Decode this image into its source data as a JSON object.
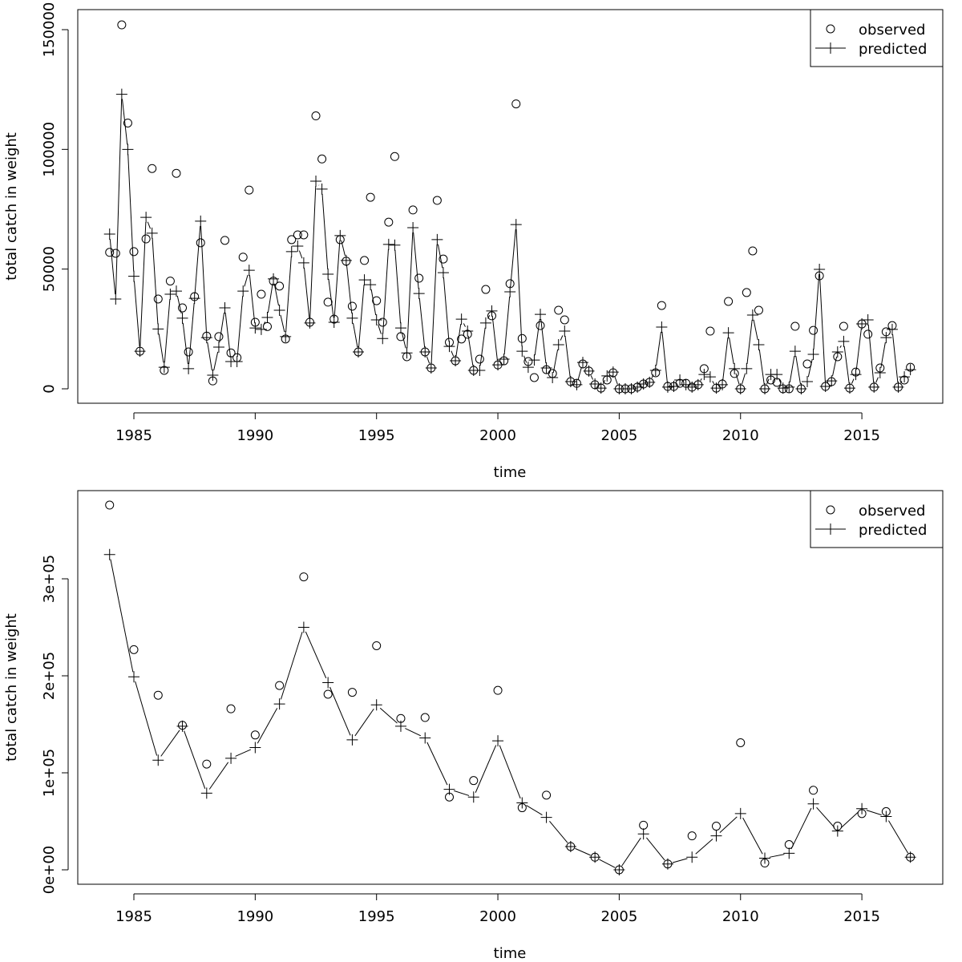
{
  "chart_data": [
    {
      "type": "line",
      "title": "",
      "xlabel": "time",
      "ylabel": "total catch in weight",
      "value_scale": 1000,
      "x_start": 1984.0,
      "x_step": 0.25,
      "xlim": [
        1983.5,
        2018.0
      ],
      "ylim": [
        0,
        160000
      ],
      "x_ticks": [
        1985,
        1990,
        1995,
        2000,
        2005,
        2010,
        2015
      ],
      "x_tick_labels": [
        "1985",
        "1990",
        "1995",
        "2000",
        "2005",
        "2010",
        "2015"
      ],
      "y_ticks": [
        0,
        50000,
        100000,
        150000
      ],
      "y_tick_labels": [
        "0",
        "50000",
        "100000",
        "150000"
      ],
      "legend": {
        "placement": "top-right",
        "entries": [
          "observed",
          "predicted"
        ]
      },
      "series": [
        {
          "name": "observed",
          "style": "points-circle",
          "values": [
            57,
            56.6,
            152,
            111,
            57.3,
            15.7,
            62.6,
            92,
            37.5,
            7.7,
            45,
            90,
            33.8,
            15.4,
            38.5,
            61,
            22,
            3.3,
            21.8,
            62,
            15,
            13,
            55,
            83,
            27.8,
            39.5,
            26,
            45,
            42.9,
            20.8,
            62.3,
            64.3,
            64.3,
            27.8,
            114,
            96,
            36.2,
            29.1,
            62.3,
            53.3,
            34.5,
            15.4,
            53.6,
            80,
            36.8,
            27.8,
            69.6,
            97,
            21.8,
            13.4,
            74.7,
            46.2,
            15.4,
            8.7,
            78.7,
            54.2,
            19.4,
            11.7,
            20.8,
            22.8,
            7.7,
            12.4,
            41.5,
            30.5,
            10,
            11.7,
            43.9,
            119,
            21,
            11.4,
            4.7,
            26.4,
            8,
            6.4,
            32.8,
            28.8,
            3,
            2.3,
            10.4,
            7.4,
            1.7,
            0.3,
            3.7,
            6.7,
            0,
            0,
            0,
            0.7,
            2,
            2.7,
            6.7,
            34.8,
            1,
            1,
            2.3,
            2.3,
            0.7,
            1.7,
            8.4,
            24.1,
            0.3,
            2,
            36.5,
            6.4,
            0,
            40.2,
            57.6,
            32.8,
            0,
            3.7,
            2.7,
            0,
            0,
            26.1,
            0,
            10.4,
            24.4,
            47.2,
            1,
            3,
            13.4,
            26.1,
            0.3,
            7,
            27.1,
            22.8,
            0.7,
            8.7,
            23.8,
            26.4,
            0.7,
            3.7,
            9
          ]
        },
        {
          "name": "predicted",
          "style": "line-plus",
          "values": [
            64.6,
            37.5,
            123,
            100,
            47,
            15.7,
            71.6,
            65,
            25,
            9,
            39.5,
            40.8,
            29.5,
            8.4,
            37.8,
            70,
            21.4,
            5.7,
            17.4,
            33.8,
            11.4,
            11.4,
            40.8,
            49.5,
            25.4,
            24.8,
            29.8,
            45.9,
            32.8,
            21.8,
            57.3,
            59.6,
            52.6,
            27.5,
            86.7,
            83.4,
            47.9,
            27.8,
            64,
            53.6,
            29.5,
            15.4,
            45.5,
            43.5,
            28.8,
            21,
            60.3,
            60,
            25.4,
            15,
            67.3,
            39.8,
            15.4,
            8.7,
            62.3,
            48.5,
            17.7,
            11.7,
            29.1,
            24.1,
            7.7,
            7.7,
            27.5,
            32.5,
            10,
            12.4,
            40.5,
            68.6,
            15.7,
            9,
            12,
            31.1,
            8.7,
            4.7,
            18.4,
            24.1,
            3,
            1.7,
            11,
            7.4,
            2,
            0.3,
            5.4,
            7,
            0,
            0,
            0,
            0.7,
            2,
            2.7,
            7.7,
            25.8,
            0.7,
            1,
            3.7,
            1.7,
            0.7,
            1.7,
            6,
            5,
            0.3,
            1.7,
            23.4,
            8.4,
            0,
            8.4,
            30.8,
            18.4,
            0,
            6,
            6,
            0.3,
            0.7,
            15.7,
            0,
            3,
            14.4,
            49.9,
            1,
            3.3,
            15.4,
            19.8,
            0.3,
            6,
            27.1,
            28.8,
            0.7,
            6.7,
            21.4,
            24.8,
            0.7,
            5,
            8
          ]
        }
      ]
    },
    {
      "type": "line",
      "title": "",
      "xlabel": "time",
      "ylabel": "total catch in weight",
      "value_scale": 1000,
      "x_start": 1984,
      "x_step": 1,
      "xlim": [
        1983.5,
        2018.0
      ],
      "ylim": [
        -10000,
        380000
      ],
      "x_ticks": [
        1985,
        1990,
        1995,
        2000,
        2005,
        2010,
        2015
      ],
      "x_tick_labels": [
        "1985",
        "1990",
        "1995",
        "2000",
        "2005",
        "2010",
        "2015"
      ],
      "y_ticks": [
        0,
        100000,
        200000,
        300000
      ],
      "y_tick_labels": [
        "0e+00",
        "1e+05",
        "2e+05",
        "3e+05"
      ],
      "legend": {
        "placement": "top-right",
        "entries": [
          "observed",
          "predicted"
        ]
      },
      "series": [
        {
          "name": "observed",
          "style": "points-circle",
          "values": [
            376,
            227,
            180,
            149,
            109,
            166,
            139,
            190,
            302,
            181,
            183,
            231,
            156,
            157,
            75,
            92,
            185,
            64,
            77,
            24,
            13,
            0,
            46,
            6,
            35,
            45,
            131,
            7,
            26,
            82,
            45,
            58,
            60,
            13
          ]
        },
        {
          "name": "predicted",
          "style": "line-plus",
          "values": [
            325,
            199,
            113,
            148,
            79,
            115,
            126,
            171,
            250,
            193,
            134,
            170,
            148,
            136,
            83,
            75,
            133,
            69,
            54,
            24,
            13,
            0,
            37,
            6,
            13,
            35,
            58,
            12,
            17,
            68,
            40,
            63,
            55,
            13
          ]
        }
      ]
    }
  ]
}
